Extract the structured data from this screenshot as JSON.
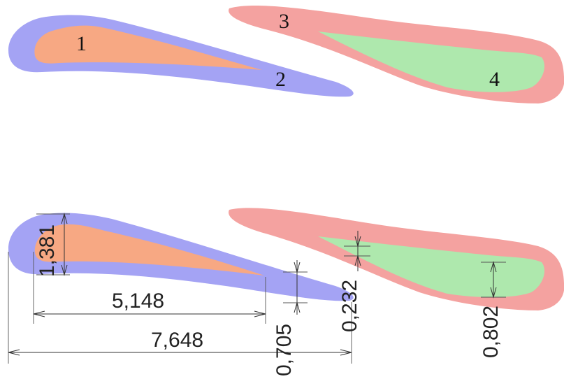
{
  "colors": {
    "blue_layer": "#a4a3f4",
    "orange_core": "#f7a883",
    "red_layer": "#f4a2a0",
    "green_core": "#aee8ad",
    "dimension_line": "#333333"
  },
  "region_labels": {
    "core_left": "1",
    "layer_left": "2",
    "layer_right": "3",
    "core_right": "4"
  },
  "dimensions": {
    "thickness_left_outer": "1,381",
    "core_length_left": "5,148",
    "total_length_left": "7,648",
    "trailing_thickness_left": "0,705",
    "core_offset_right": "0,232",
    "core_thickness_right": "0,802"
  }
}
